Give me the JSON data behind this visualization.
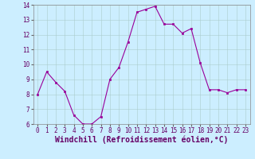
{
  "x": [
    0,
    1,
    2,
    3,
    4,
    5,
    6,
    7,
    8,
    9,
    10,
    11,
    12,
    13,
    14,
    15,
    16,
    17,
    18,
    19,
    20,
    21,
    22,
    23
  ],
  "y": [
    8.0,
    9.5,
    8.8,
    8.2,
    6.6,
    6.0,
    6.0,
    6.5,
    9.0,
    9.8,
    11.5,
    13.5,
    13.7,
    13.9,
    12.7,
    12.7,
    12.1,
    12.4,
    10.1,
    8.3,
    8.3,
    8.1,
    8.3,
    8.3
  ],
  "line_color": "#990099",
  "marker_color": "#990099",
  "bg_color": "#cceeff",
  "grid_color": "#aacccc",
  "xlabel": "Windchill (Refroidissement éolien,°C)",
  "xlabel_color": "#660066",
  "ylim": [
    6,
    14
  ],
  "xlim": [
    -0.5,
    23.5
  ],
  "yticks": [
    6,
    7,
    8,
    9,
    10,
    11,
    12,
    13,
    14
  ],
  "xticks": [
    0,
    1,
    2,
    3,
    4,
    5,
    6,
    7,
    8,
    9,
    10,
    11,
    12,
    13,
    14,
    15,
    16,
    17,
    18,
    19,
    20,
    21,
    22,
    23
  ],
  "tick_fontsize": 5.5,
  "xlabel_fontsize": 7.0
}
